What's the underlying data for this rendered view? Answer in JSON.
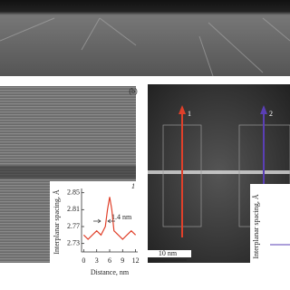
{
  "panel_label": "(b)",
  "arrows": [
    {
      "label": "1",
      "color": "#e0402a"
    },
    {
      "label": "2",
      "color": "#5a3fb5"
    }
  ],
  "scale_bar": "10 nm",
  "inset2": {
    "y_label": "Interplanar spacing, Å"
  },
  "chart_data": {
    "type": "line",
    "y_label": "Interplanar spacing, Å",
    "x_label": "Distance, nm",
    "label": "1",
    "annotation": "1.4 nm",
    "x": [
      0,
      1,
      2,
      3,
      4,
      5,
      5.5,
      6,
      6.5,
      7,
      8,
      9,
      10,
      11,
      12
    ],
    "series": [
      {
        "color": "#e0402a",
        "values": [
          2.75,
          2.74,
          2.75,
          2.76,
          2.75,
          2.77,
          2.81,
          2.84,
          2.81,
          2.76,
          2.75,
          2.74,
          2.75,
          2.76,
          2.75
        ]
      }
    ],
    "xlim": [
      -0.5,
      12.5
    ],
    "xticks": [
      0,
      3,
      6,
      9,
      12
    ],
    "ylim": [
      2.71,
      2.86
    ],
    "yticks": [
      2.73,
      2.77,
      2.81,
      2.85
    ]
  }
}
